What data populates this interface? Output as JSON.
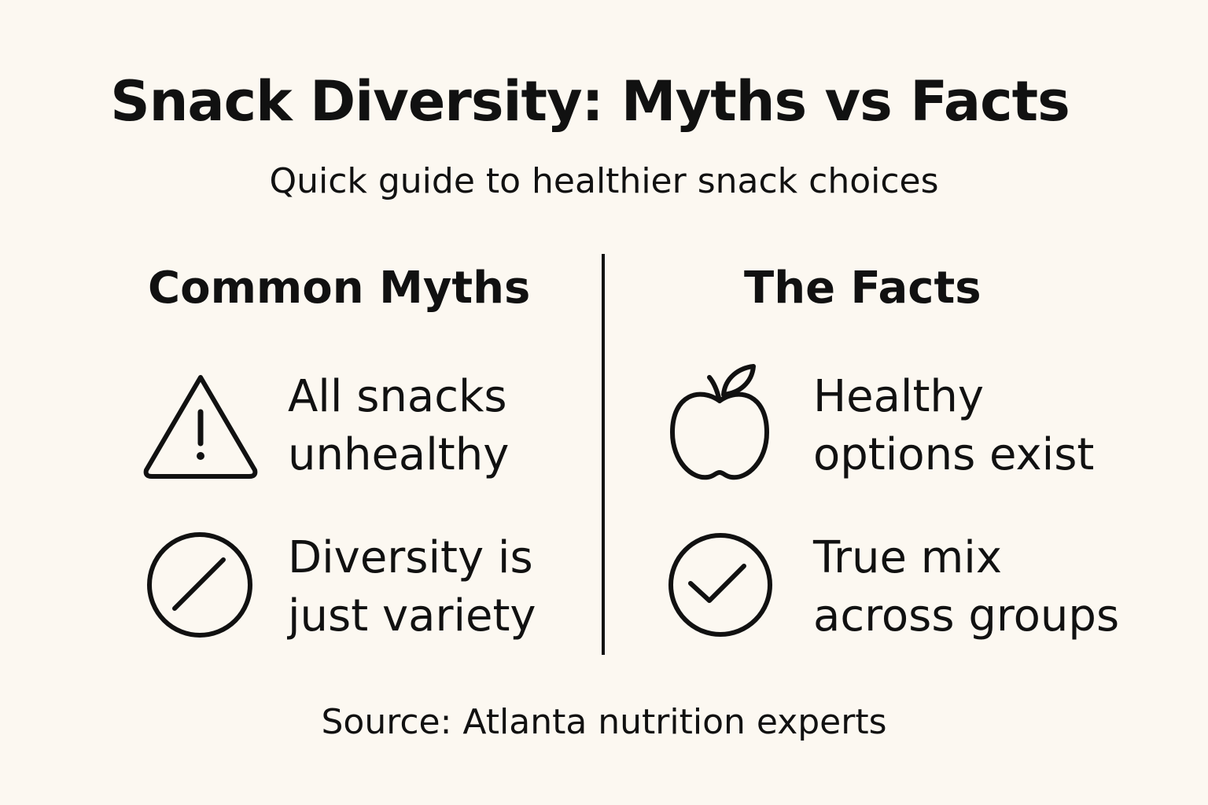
{
  "title": "Snack Diversity: Myths vs Facts",
  "subtitle": "Quick guide to healthier snack choices",
  "myths": {
    "heading": "Common Myths",
    "items": [
      {
        "icon": "warning-triangle-icon",
        "line1": "All snacks",
        "line2": "unhealthy"
      },
      {
        "icon": "prohibited-circle-icon",
        "line1": "Diversity is",
        "line2": "just variety"
      }
    ]
  },
  "facts": {
    "heading": "The Facts",
    "items": [
      {
        "icon": "apple-icon",
        "line1": "Healthy",
        "line2": "options exist"
      },
      {
        "icon": "check-circle-icon",
        "line1": "True mix",
        "line2": "across groups"
      }
    ]
  },
  "source": "Source: Atlanta nutrition experts"
}
